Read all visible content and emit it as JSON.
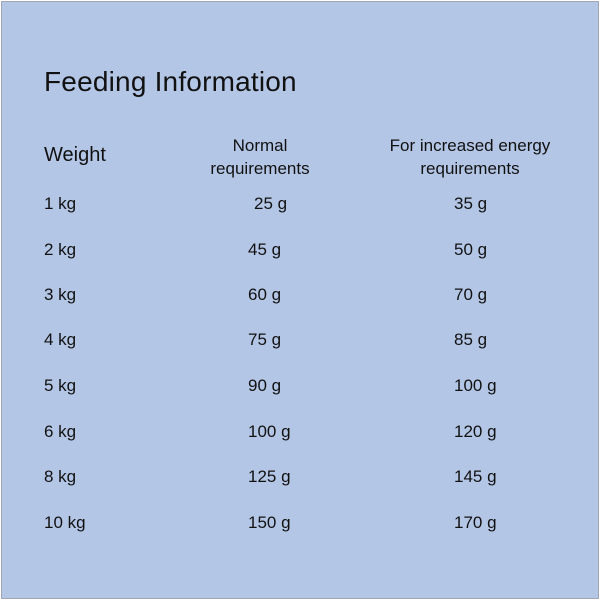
{
  "title": "Feeding Information",
  "headers": {
    "weight": "Weight",
    "normal_line1": "Normal",
    "normal_line2": "requirements",
    "increased_line1": "For increased energy",
    "increased_line2": "requirements"
  },
  "rows": [
    {
      "weight": "1 kg",
      "normal": "25 g",
      "increased": "35 g"
    },
    {
      "weight": "2 kg",
      "normal": "45 g",
      "increased": "50 g"
    },
    {
      "weight": "3 kg",
      "normal": "60 g",
      "increased": "70 g"
    },
    {
      "weight": "4 kg",
      "normal": "75 g",
      "increased": "85 g"
    },
    {
      "weight": "5 kg",
      "normal": "90 g",
      "increased": "100 g"
    },
    {
      "weight": "6 kg",
      "normal": "100 g",
      "increased": "120 g"
    },
    {
      "weight": "8 kg",
      "normal": "125 g",
      "increased": "145 g"
    },
    {
      "weight": "10 kg",
      "normal": "150 g",
      "increased": "170 g"
    }
  ]
}
